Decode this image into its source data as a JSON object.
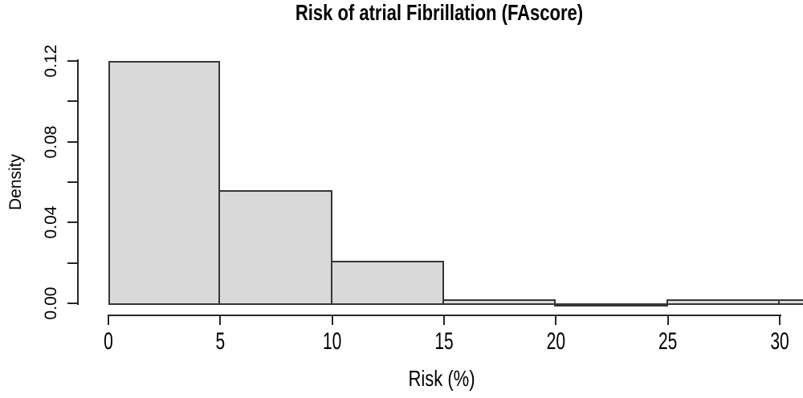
{
  "figure": {
    "title": "Risk of atrial Fibrillation (FAscore)"
  },
  "chart_data": {
    "type": "bar",
    "subtype": "histogram",
    "title": "Risk of atrial Fibrillation (FAscore)",
    "xlabel": "Risk (%)",
    "ylabel": "Density",
    "xlim": [
      0,
      31
    ],
    "ylim": [
      0,
      0.12
    ],
    "grid": false,
    "legend": null,
    "bins": [
      {
        "from": 0,
        "to": 5,
        "density": 0.12
      },
      {
        "from": 5,
        "to": 10,
        "density": 0.056
      },
      {
        "from": 10,
        "to": 15,
        "density": 0.021
      },
      {
        "from": 15,
        "to": 20,
        "density": 0.002
      },
      {
        "from": 20,
        "to": 25,
        "density": 0.0
      },
      {
        "from": 25,
        "to": 30,
        "density": 0.002
      },
      {
        "from": 30,
        "to": 35,
        "density": 0.002
      }
    ],
    "x_ticks": {
      "values": [
        0,
        5,
        10,
        15,
        20,
        25,
        30
      ],
      "labels": [
        "0",
        "5",
        "10",
        "15",
        "20",
        "25",
        "30"
      ]
    },
    "y_ticks": {
      "values": [
        0,
        0.02,
        0.04,
        0.06,
        0.08,
        0.1,
        0.12
      ],
      "labeled": [
        {
          "value": 0.0,
          "label": "0.00"
        },
        {
          "value": 0.04,
          "label": "0.04"
        },
        {
          "value": 0.08,
          "label": "0.08"
        },
        {
          "value": 0.12,
          "label": "0.12"
        }
      ]
    },
    "colors": {
      "bar_fill": "#d9d9d9",
      "bar_border": "#363636",
      "axis": "#262626",
      "text": "#000000"
    }
  }
}
